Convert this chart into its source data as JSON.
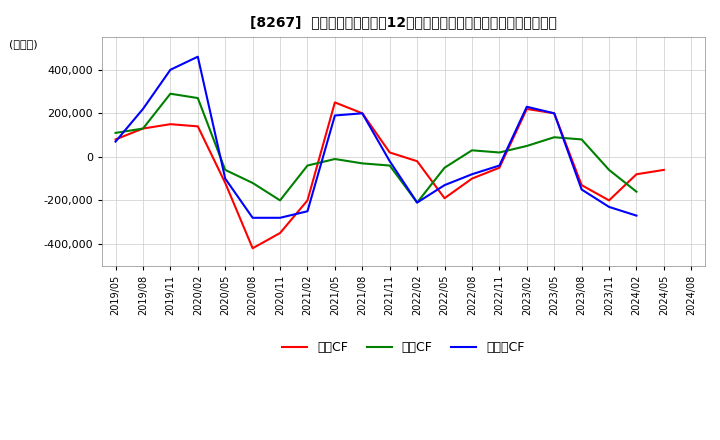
{
  "title": "[8267]  キャッシュフローの12か月移動合計の対前年同期増減額の推移",
  "ylabel": "(百万円)",
  "ylim": [
    -500000,
    550000
  ],
  "yticks": [
    -400000,
    -200000,
    0,
    200000,
    400000
  ],
  "background_color": "#ffffff",
  "grid_color": "#cccccc",
  "dates": [
    "2019/05",
    "2019/08",
    "2019/11",
    "2020/02",
    "2020/05",
    "2020/08",
    "2020/11",
    "2021/02",
    "2021/05",
    "2021/08",
    "2021/11",
    "2022/02",
    "2022/05",
    "2022/08",
    "2022/11",
    "2023/02",
    "2023/05",
    "2023/08",
    "2023/11",
    "2024/02",
    "2024/05",
    "2024/08"
  ],
  "operating_cf": [
    80000,
    130000,
    150000,
    140000,
    -120000,
    -420000,
    -350000,
    -200000,
    250000,
    200000,
    20000,
    -20000,
    -190000,
    -100000,
    -50000,
    220000,
    200000,
    -130000,
    -200000,
    -80000,
    -60000,
    null
  ],
  "investing_cf": [
    110000,
    130000,
    290000,
    270000,
    -60000,
    -120000,
    -200000,
    -40000,
    -10000,
    -30000,
    -40000,
    -210000,
    -50000,
    30000,
    20000,
    50000,
    90000,
    80000,
    -60000,
    -160000,
    null,
    null
  ],
  "free_cf": [
    70000,
    220000,
    400000,
    460000,
    -100000,
    -280000,
    -280000,
    -250000,
    190000,
    200000,
    -20000,
    -210000,
    -130000,
    -80000,
    -40000,
    230000,
    200000,
    -150000,
    -230000,
    -270000,
    null,
    null
  ],
  "operating_color": "#ff0000",
  "investing_color": "#008000",
  "free_cf_color": "#0000ff",
  "legend_labels": [
    "営業CF",
    "投資CF",
    "フリーCF"
  ]
}
